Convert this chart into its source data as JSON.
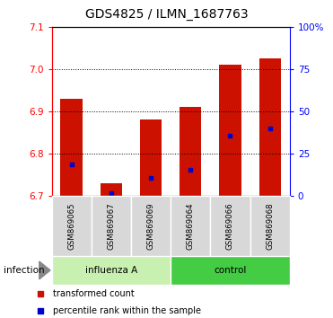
{
  "title": "GDS4825 / ILMN_1687763",
  "samples": [
    "GSM869065",
    "GSM869067",
    "GSM869069",
    "GSM869064",
    "GSM869066",
    "GSM869068"
  ],
  "groups": [
    "influenza A",
    "influenza A",
    "influenza A",
    "control",
    "control",
    "control"
  ],
  "bar_bottom": 6.7,
  "red_tops": [
    6.93,
    6.73,
    6.88,
    6.91,
    7.01,
    7.025
  ],
  "blue_values": [
    6.775,
    6.706,
    6.743,
    6.762,
    6.842,
    6.86
  ],
  "ylim": [
    6.7,
    7.1
  ],
  "yticks_left": [
    6.7,
    6.8,
    6.9,
    7.0,
    7.1
  ],
  "yticks_right_labels": [
    "0",
    "25",
    "50",
    "75",
    "100%"
  ],
  "yticks_right_values": [
    6.7,
    6.8,
    6.9,
    7.0,
    7.1
  ],
  "bar_color": "#CC1100",
  "blue_color": "#0000CC",
  "legend_red": "transformed count",
  "legend_blue": "percentile rank within the sample",
  "infection_label": "infection",
  "bar_width": 0.55,
  "group_label_influenza": "influenza A",
  "group_label_control": "control",
  "light_green": "#c8f0b0",
  "dark_green": "#44cc44",
  "title_fontsize": 10,
  "tick_fontsize": 7.5
}
